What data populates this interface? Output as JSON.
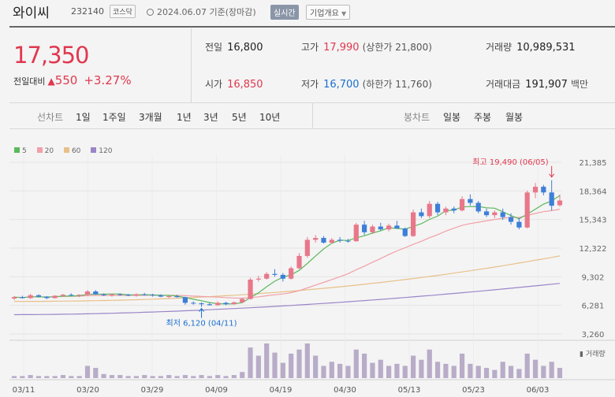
{
  "header": {
    "title": "와이씨",
    "code": "232140",
    "market": "코스닥",
    "date": "2024.06.07 기준(장마감)",
    "realtime": "실시간",
    "corp_info": "기업개요"
  },
  "price": {
    "current": "17,350",
    "vs_label": "전일대비",
    "change": "550",
    "change_pct": "+3.27%"
  },
  "stats": {
    "prev_close_label": "전일",
    "prev_close": "16,800",
    "open_label": "시가",
    "open": "16,850",
    "high_label": "고가",
    "high": "17,990",
    "upper_limit": "(상한가 21,800)",
    "low_label": "저가",
    "low": "16,700",
    "lower_limit": "(하한가 11,760)",
    "volume_label": "거래량",
    "volume": "10,989,531",
    "amount_label": "거래대금",
    "amount": "191,907",
    "amount_unit": "백만"
  },
  "toolbar": {
    "line_chart": "선차트",
    "periods": [
      "1일",
      "1주일",
      "3개월",
      "1년",
      "3년",
      "5년",
      "10년"
    ],
    "candle_chart": "봉차트",
    "candle_periods": [
      "일봉",
      "주봉",
      "월봉"
    ]
  },
  "legend": [
    {
      "name": "5",
      "color": "#5cb85c"
    },
    {
      "name": "20",
      "color": "#f0a0a8"
    },
    {
      "name": "60",
      "color": "#e8c08a"
    },
    {
      "name": "120",
      "color": "#9a86c8"
    }
  ],
  "colors": {
    "up": "#e8778a",
    "down": "#3d7ed8",
    "accent_red": "#e0384f",
    "accent_blue": "#1a6fd0"
  },
  "chart_data": {
    "type": "candlestick",
    "y_ticks": [
      "21,385",
      "18,364",
      "15,343",
      "12,322",
      "9,302",
      "6,281",
      "3,260"
    ],
    "ylim": [
      3260,
      21385
    ],
    "x_ticks": [
      "03/11",
      "03/20",
      "03/29",
      "04/09",
      "04/19",
      "04/30",
      "05/13",
      "05/23",
      "06/03"
    ],
    "high_annotation": "최고 19,490 (06/05)",
    "low_annotation": "최저 6,120 (04/11)",
    "volume_label": "거래량",
    "candles": [
      [
        7000,
        7250,
        6850,
        7150
      ],
      [
        7150,
        7300,
        7000,
        7050
      ],
      [
        7050,
        7500,
        6950,
        7350
      ],
      [
        7350,
        7450,
        7100,
        7200
      ],
      [
        7200,
        7250,
        6950,
        7050
      ],
      [
        7050,
        7350,
        7000,
        7300
      ],
      [
        7300,
        7500,
        7200,
        7400
      ],
      [
        7400,
        7550,
        7250,
        7350
      ],
      [
        7350,
        7450,
        7150,
        7400
      ],
      [
        7400,
        7900,
        7300,
        7750
      ],
      [
        7750,
        7900,
        7400,
        7450
      ],
      [
        7450,
        7550,
        7250,
        7350
      ],
      [
        7350,
        7500,
        7200,
        7450
      ],
      [
        7450,
        7550,
        7300,
        7400
      ],
      [
        7400,
        7500,
        7250,
        7300
      ],
      [
        7300,
        7550,
        7200,
        7450
      ],
      [
        7450,
        7600,
        7300,
        7400
      ],
      [
        7400,
        7500,
        7200,
        7350
      ],
      [
        7350,
        7450,
        7150,
        7200
      ],
      [
        7200,
        7300,
        7050,
        7250
      ],
      [
        7250,
        7400,
        7100,
        7150
      ],
      [
        7150,
        7200,
        6350,
        6550
      ],
      [
        6550,
        6700,
        6350,
        6500
      ],
      [
        6500,
        6600,
        6120,
        6400
      ],
      [
        6400,
        6550,
        6250,
        6300
      ],
      [
        6300,
        6700,
        6250,
        6550
      ],
      [
        6550,
        6650,
        6300,
        6400
      ],
      [
        6400,
        6700,
        6350,
        6600
      ],
      [
        6600,
        7100,
        6500,
        6950
      ],
      [
        6950,
        9200,
        6900,
        9000
      ],
      [
        9000,
        9400,
        8800,
        9100
      ],
      [
        9100,
        9800,
        9000,
        9600
      ],
      [
        9600,
        10100,
        9300,
        9500
      ],
      [
        9500,
        9700,
        8800,
        9100
      ],
      [
        9100,
        10400,
        9000,
        10200
      ],
      [
        10200,
        11800,
        10100,
        11500
      ],
      [
        11500,
        13500,
        11300,
        13200
      ],
      [
        13200,
        13700,
        12900,
        13400
      ],
      [
        13400,
        13600,
        12800,
        12900
      ],
      [
        12900,
        13400,
        12800,
        13200
      ],
      [
        13200,
        13500,
        12900,
        13100
      ],
      [
        13100,
        13300,
        12900,
        13050
      ],
      [
        13050,
        15000,
        13000,
        14800
      ],
      [
        14800,
        15200,
        13700,
        14000
      ],
      [
        14000,
        14800,
        13800,
        14600
      ],
      [
        14600,
        15000,
        14200,
        14300
      ],
      [
        14300,
        14900,
        14100,
        14700
      ],
      [
        14700,
        15200,
        14500,
        14400
      ],
      [
        14400,
        14500,
        13500,
        13600
      ],
      [
        13600,
        16400,
        13500,
        16100
      ],
      [
        16100,
        16500,
        15500,
        15700
      ],
      [
        15700,
        17300,
        15500,
        17000
      ],
      [
        17000,
        17200,
        15800,
        16100
      ],
      [
        16100,
        16700,
        15800,
        16500
      ],
      [
        16500,
        16700,
        16000,
        16300
      ],
      [
        16300,
        17800,
        16200,
        17500
      ],
      [
        17500,
        18000,
        16800,
        17100
      ],
      [
        17100,
        17300,
        16000,
        16200
      ],
      [
        16200,
        16500,
        15600,
        15800
      ],
      [
        15800,
        16300,
        15500,
        16100
      ],
      [
        16100,
        16500,
        15300,
        15600
      ],
      [
        15600,
        16000,
        14800,
        15100
      ],
      [
        15100,
        15500,
        14300,
        14500
      ],
      [
        14500,
        18400,
        14400,
        18200
      ],
      [
        18200,
        19200,
        17600,
        18800
      ],
      [
        18800,
        19000,
        17900,
        18200
      ],
      [
        18200,
        19490,
        16300,
        16800
      ],
      [
        16850,
        17990,
        16700,
        17350
      ]
    ],
    "volumes": [
      2,
      2,
      3,
      2,
      2,
      2,
      3,
      2,
      2,
      12,
      10,
      4,
      3,
      3,
      2,
      2,
      3,
      2,
      2,
      3,
      2,
      3,
      2,
      3,
      2,
      3,
      2,
      3,
      6,
      30,
      22,
      34,
      25,
      15,
      24,
      28,
      34,
      22,
      12,
      16,
      14,
      12,
      28,
      24,
      15,
      18,
      12,
      14,
      12,
      22,
      18,
      28,
      16,
      14,
      12,
      24,
      14,
      12,
      10,
      8,
      16,
      12,
      9,
      24,
      18,
      12,
      16,
      10
    ]
  }
}
